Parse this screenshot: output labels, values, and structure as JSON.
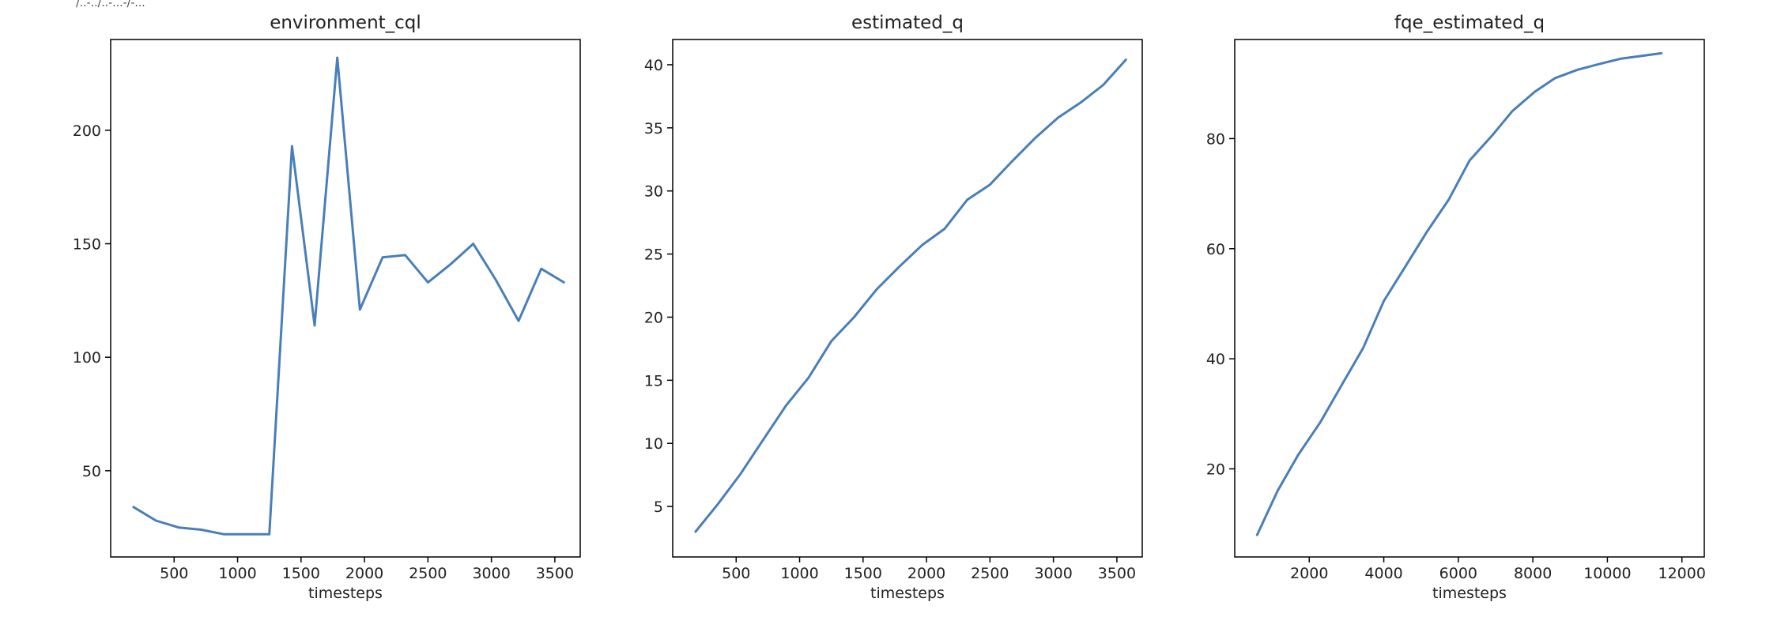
{
  "header": {
    "fragment": "/..-../..-...-/-..."
  },
  "colors": {
    "line": "#4a7eb8"
  },
  "chart_data": [
    {
      "type": "line",
      "title": "environment_cql",
      "xlabel": "timesteps",
      "ylabel": "",
      "xlim": [
        0,
        3700
      ],
      "ylim": [
        12,
        240
      ],
      "xticks": [
        500,
        1000,
        1500,
        2000,
        2500,
        3000,
        3500
      ],
      "yticks": [
        50,
        100,
        150,
        200
      ],
      "x": [
        180,
        357,
        536,
        714,
        893,
        1071,
        1250,
        1429,
        1607,
        1786,
        1964,
        2143,
        2321,
        2500,
        2679,
        2857,
        3036,
        3214,
        3393,
        3571
      ],
      "y": [
        34,
        28,
        25,
        24,
        22,
        22,
        22,
        193,
        114,
        232,
        121,
        144,
        145,
        133,
        141,
        150,
        134,
        116,
        139,
        133
      ]
    },
    {
      "type": "line",
      "title": "estimated_q",
      "xlabel": "timesteps",
      "ylabel": "",
      "xlim": [
        0,
        3700
      ],
      "ylim": [
        1,
        42
      ],
      "xticks": [
        500,
        1000,
        1500,
        2000,
        2500,
        3000,
        3500
      ],
      "yticks": [
        5,
        10,
        15,
        20,
        25,
        30,
        35,
        40
      ],
      "x": [
        180,
        357,
        536,
        714,
        893,
        1071,
        1250,
        1429,
        1607,
        1786,
        1964,
        2143,
        2321,
        2500,
        2679,
        2857,
        3036,
        3214,
        3393,
        3571
      ],
      "y": [
        3.0,
        5.2,
        7.6,
        10.3,
        13.0,
        15.2,
        18.1,
        20.0,
        22.2,
        24.0,
        25.7,
        27.0,
        29.3,
        30.5,
        32.4,
        34.2,
        35.8,
        37.0,
        38.4,
        40.4
      ]
    },
    {
      "type": "line",
      "title": "fqe_estimated_q",
      "xlabel": "timesteps",
      "ylabel": "",
      "xlim": [
        0,
        12600
      ],
      "ylim": [
        4,
        98
      ],
      "xticks": [
        2000,
        4000,
        6000,
        8000,
        10000,
        12000
      ],
      "yticks": [
        20,
        40,
        60,
        80
      ],
      "x": [
        600,
        1150,
        1700,
        2300,
        2850,
        3450,
        4000,
        4600,
        5150,
        5750,
        6300,
        6900,
        7450,
        8050,
        8600,
        9200,
        9750,
        10350,
        10900,
        11450
      ],
      "y": [
        8.0,
        16.0,
        22.5,
        28.5,
        35.0,
        42.0,
        50.5,
        57.0,
        63.0,
        69.0,
        76.0,
        80.5,
        85.0,
        88.5,
        91.0,
        92.5,
        93.5,
        94.5,
        95.0,
        95.5
      ]
    }
  ]
}
